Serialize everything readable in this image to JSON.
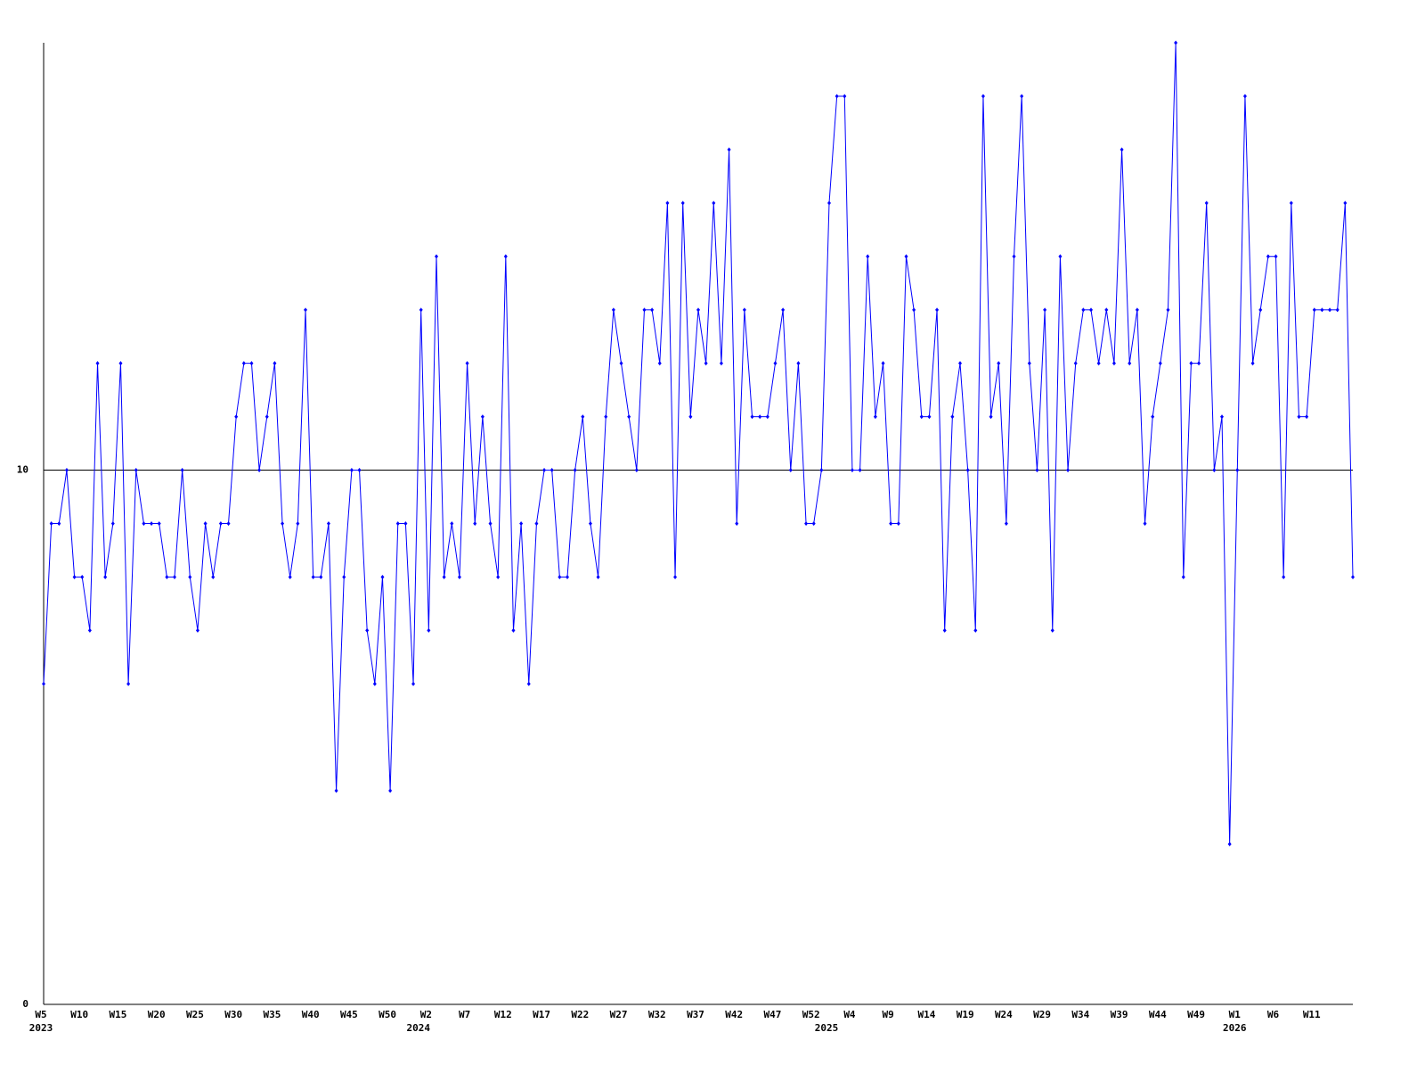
{
  "chart_data": {
    "type": "line",
    "categories": [
      "W5",
      null,
      null,
      null,
      null,
      "W10",
      null,
      null,
      null,
      null,
      "W15",
      null,
      null,
      null,
      null,
      "W20",
      null,
      null,
      null,
      null,
      "W25",
      null,
      null,
      null,
      null,
      "W30",
      null,
      null,
      null,
      null,
      "W35",
      null,
      null,
      null,
      null,
      "W40",
      null,
      null,
      null,
      null,
      "W45",
      null,
      null,
      null,
      null,
      "W50",
      null,
      null,
      null,
      null,
      "W2",
      null,
      null,
      null,
      null,
      "W7",
      null,
      null,
      null,
      null,
      "W12",
      null,
      null,
      null,
      null,
      "W17",
      null,
      null,
      null,
      null,
      "W22",
      null,
      null,
      null,
      null,
      "W27",
      null,
      null,
      null,
      null,
      "W32",
      null,
      null,
      null,
      null,
      "W37",
      null,
      null,
      null,
      null,
      "W42",
      null,
      null,
      null,
      null,
      "W47",
      null,
      null,
      null,
      null,
      "W52",
      null,
      null,
      null,
      null,
      "W4",
      null,
      null,
      null,
      null,
      "W9",
      null,
      null,
      null,
      null,
      "W14",
      null,
      null,
      null,
      null,
      "W19",
      null,
      null,
      null,
      null,
      "W24",
      null,
      null,
      null,
      null,
      "W29",
      null,
      null,
      null,
      null,
      "W34",
      null,
      null,
      null,
      null,
      "W39",
      null,
      null,
      null,
      null,
      "W44",
      null,
      null,
      null,
      null,
      "W49",
      null,
      null,
      null,
      null,
      "W1",
      null,
      null,
      null,
      null,
      "W6",
      null,
      null,
      null,
      null,
      "W11",
      null,
      null,
      null,
      null,
      null
    ],
    "year_labels": [
      "2023",
      null,
      null,
      null,
      null,
      null,
      null,
      null,
      null,
      null,
      null,
      null,
      null,
      null,
      null,
      null,
      null,
      null,
      null,
      null,
      null,
      null,
      null,
      null,
      null,
      null,
      null,
      null,
      null,
      null,
      null,
      null,
      null,
      null,
      null,
      null,
      null,
      null,
      null,
      null,
      null,
      null,
      null,
      null,
      null,
      null,
      null,
      null,
      null,
      "2024",
      null,
      null,
      null,
      null,
      null,
      null,
      null,
      null,
      null,
      null,
      null,
      null,
      null,
      null,
      null,
      null,
      null,
      null,
      null,
      null,
      null,
      null,
      null,
      null,
      null,
      null,
      null,
      null,
      null,
      null,
      null,
      null,
      null,
      null,
      null,
      null,
      null,
      null,
      null,
      null,
      null,
      null,
      null,
      null,
      null,
      null,
      null,
      null,
      null,
      null,
      null,
      null,
      "2025",
      null,
      null,
      null,
      null,
      null,
      null,
      null,
      null,
      null,
      null,
      null,
      null,
      null,
      null,
      null,
      null,
      null,
      null,
      null,
      null,
      null,
      null,
      null,
      null,
      null,
      null,
      null,
      null,
      null,
      null,
      null,
      null,
      null,
      null,
      null,
      null,
      null,
      null,
      null,
      null,
      null,
      null,
      null,
      null,
      null,
      null,
      null,
      null,
      null,
      null,
      null,
      null,
      "2026",
      null,
      null,
      null,
      null,
      null,
      null,
      null,
      null,
      null,
      null,
      null,
      null,
      null,
      null,
      null
    ],
    "values": [
      6,
      9,
      9,
      10,
      8,
      8,
      7,
      12,
      8,
      9,
      12,
      6,
      10,
      9,
      9,
      9,
      8,
      8,
      10,
      8,
      7,
      9,
      8,
      9,
      9,
      11,
      12,
      12,
      10,
      11,
      12,
      9,
      8,
      9,
      13,
      8,
      8,
      9,
      4,
      8,
      10,
      10,
      7,
      6,
      8,
      4,
      9,
      9,
      6,
      13,
      7,
      14,
      8,
      9,
      8,
      12,
      9,
      11,
      9,
      8,
      14,
      7,
      9,
      6,
      9,
      10,
      10,
      8,
      8,
      10,
      11,
      9,
      8,
      11,
      13,
      12,
      11,
      10,
      13,
      13,
      12,
      15,
      8,
      15,
      11,
      13,
      12,
      15,
      12,
      16,
      9,
      13,
      11,
      11,
      11,
      12,
      13,
      10,
      12,
      9,
      9,
      10,
      15,
      17,
      17,
      10,
      10,
      14,
      11,
      12,
      9,
      9,
      14,
      13,
      11,
      11,
      13,
      7,
      11,
      12,
      10,
      7,
      17,
      11,
      12,
      9,
      14,
      17,
      12,
      10,
      13,
      7,
      14,
      10,
      12,
      13,
      13,
      12,
      13,
      12,
      16,
      12,
      13,
      9,
      11,
      12,
      13,
      18,
      8,
      12,
      12,
      15,
      10,
      11,
      3,
      10,
      17,
      12,
      13,
      14,
      14,
      8,
      15,
      11,
      11,
      13,
      13,
      13,
      13,
      15,
      8
    ],
    "color": "#0000ff",
    "ylim": [
      0,
      18
    ],
    "yticks": [
      0,
      10
    ],
    "grid": true
  }
}
